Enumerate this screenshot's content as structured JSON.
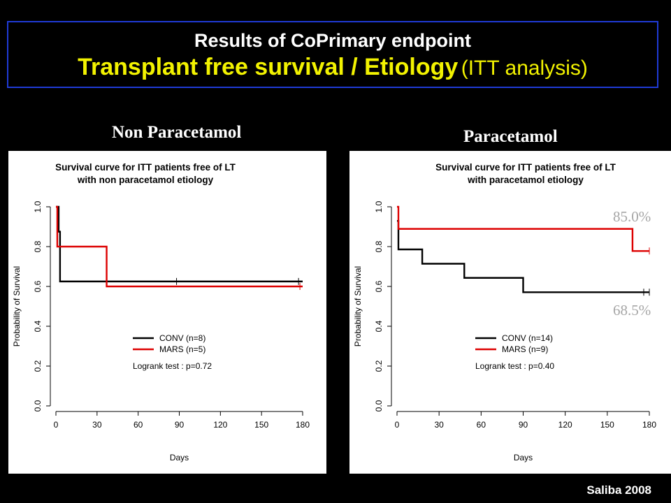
{
  "slide": {
    "title_line1": "Results of CoPrimary endpoint",
    "title_line2_main": "Transplant free survival / Etiology",
    "title_line2_suffix": "(ITT analysis)",
    "credit": "Saliba 2008"
  },
  "panels": [
    {
      "heading": "Non Paracetamol"
    },
    {
      "heading": "Paracetamol",
      "annotations": [
        "85.0%",
        "68.5%"
      ]
    }
  ],
  "chart_data": [
    {
      "type": "line",
      "title": "Survival curve for ITT patients free of LT\nwith non paracetamol etiology",
      "xlabel": "Days",
      "ylabel": "Probability of Survival",
      "xlim": [
        0,
        180
      ],
      "ylim": [
        0,
        1
      ],
      "x_ticks": [
        0,
        30,
        60,
        90,
        120,
        150,
        180
      ],
      "y_ticks": [
        0.0,
        0.2,
        0.4,
        0.6,
        0.8,
        1.0
      ],
      "grid": false,
      "legend_placement": "center-right",
      "series": [
        {
          "name": "CONV (n=8)",
          "color": "#000000",
          "step": true,
          "points": [
            [
              0,
              1.0
            ],
            [
              2,
              0.875
            ],
            [
              3,
              0.625
            ],
            [
              180,
              0.625
            ]
          ],
          "censor_x": [
            88,
            177
          ]
        },
        {
          "name": "MARS (n=5)",
          "color": "#dd0000",
          "step": true,
          "points": [
            [
              0,
              1.0
            ],
            [
              1,
              0.8
            ],
            [
              37,
              0.6
            ],
            [
              180,
              0.6
            ]
          ],
          "censor_x": [
            178
          ]
        }
      ],
      "annotation": "Logrank test : p=0.72"
    },
    {
      "type": "line",
      "title": "Survival curve for ITT patients free of LT\nwith paracetamol etiology",
      "xlabel": "Days",
      "ylabel": "Probability of Survival",
      "xlim": [
        0,
        180
      ],
      "ylim": [
        0,
        1
      ],
      "x_ticks": [
        0,
        30,
        60,
        90,
        120,
        150,
        180
      ],
      "y_ticks": [
        0.0,
        0.2,
        0.4,
        0.6,
        0.8,
        1.0
      ],
      "grid": false,
      "legend_placement": "center-right",
      "series": [
        {
          "name": "CONV (n=14)",
          "color": "#000000",
          "step": true,
          "points": [
            [
              0,
              0.929
            ],
            [
              1,
              0.786
            ],
            [
              18,
              0.714
            ],
            [
              48,
              0.643
            ],
            [
              90,
              0.571
            ],
            [
              180,
              0.571
            ]
          ],
          "censor_x": [
            176,
            180
          ]
        },
        {
          "name": "MARS  (n=9)",
          "color": "#dd0000",
          "step": true,
          "points": [
            [
              0,
              1.0
            ],
            [
              1,
              0.889
            ],
            [
              168,
              0.778
            ],
            [
              180,
              0.778
            ]
          ],
          "censor_x": [
            180
          ]
        }
      ],
      "annotation": "Logrank test : p=0.40"
    }
  ]
}
